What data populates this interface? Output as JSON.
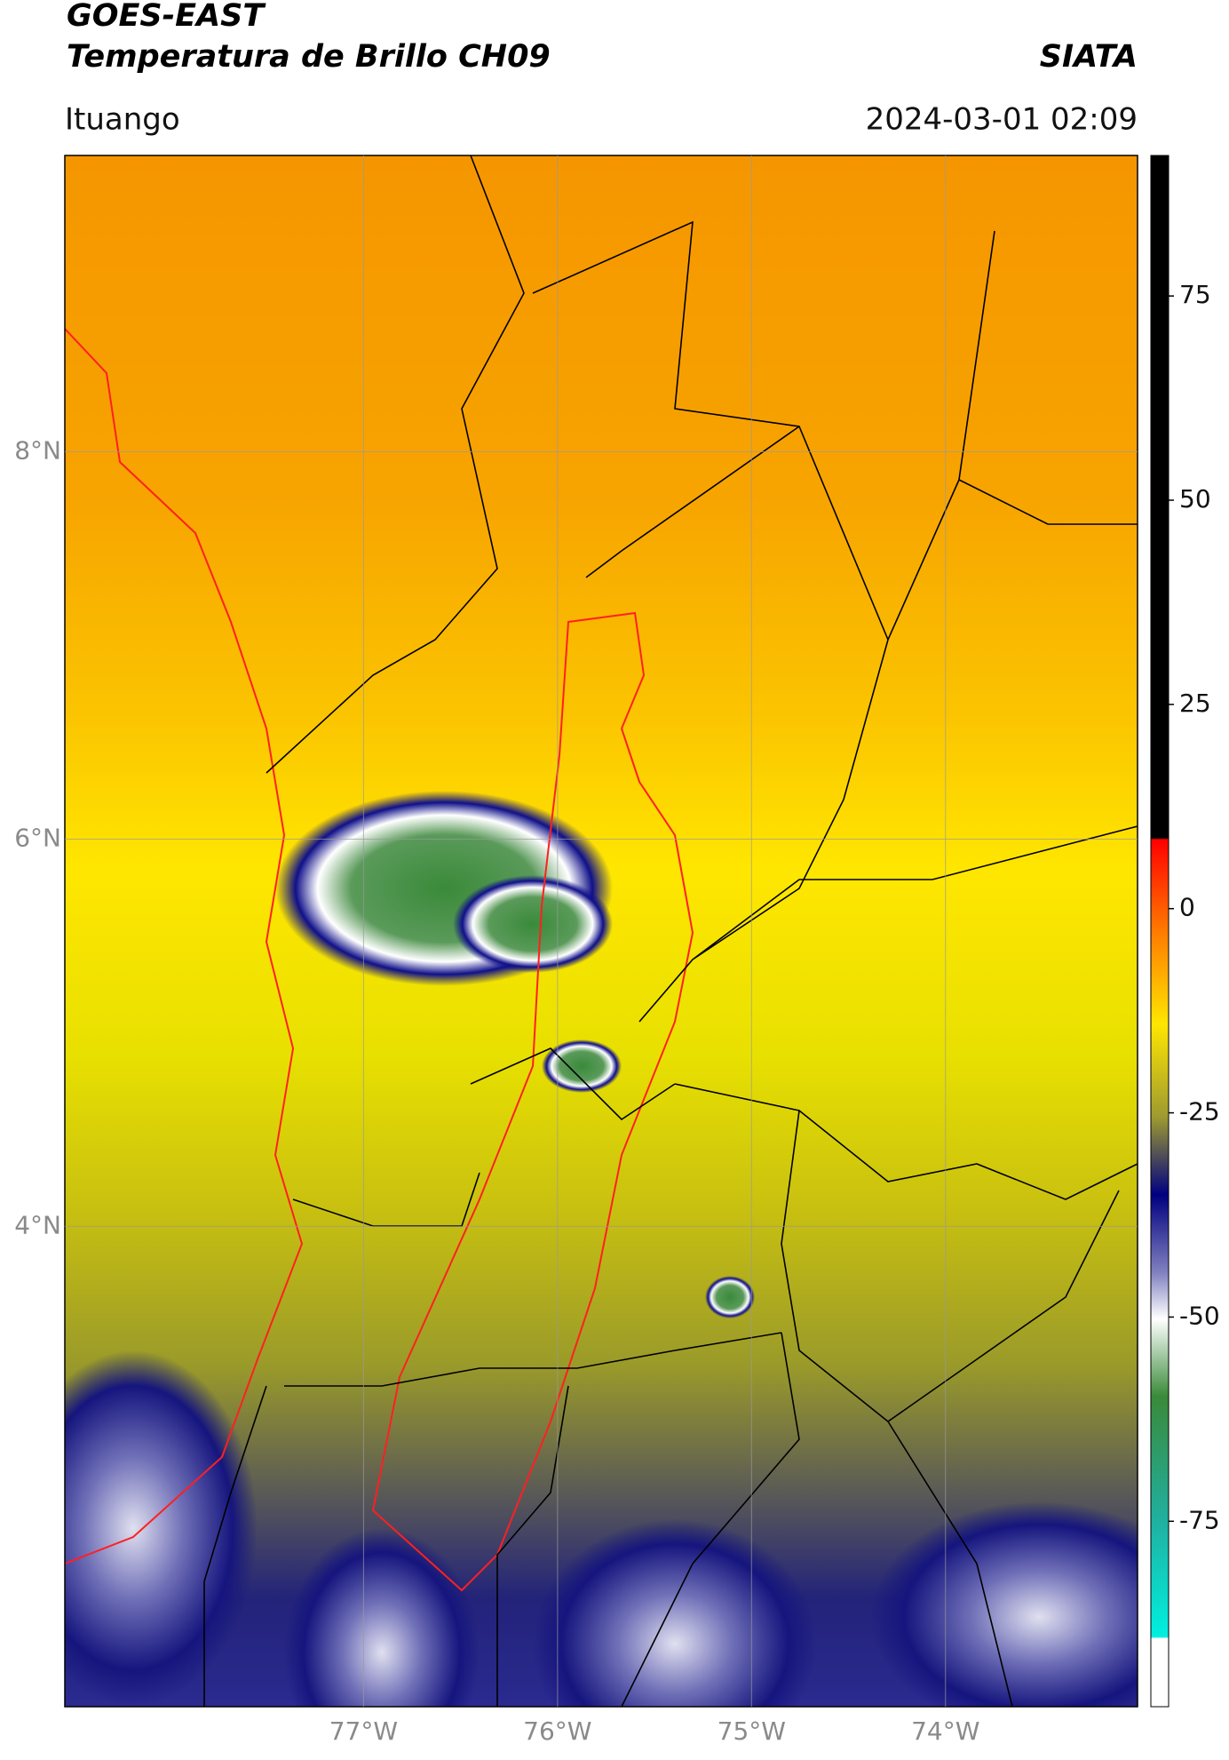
{
  "header": {
    "title": "GOES-EAST",
    "subtitle": "Temperatura de Brillo CH09",
    "source": "SIATA",
    "region": "Ituango",
    "datetime": "2024-03-01 02:09"
  },
  "map": {
    "xlim": [
      -78.54,
      -73.01
    ],
    "ylim": [
      1.52,
      9.53
    ],
    "xticks": [
      {
        "value": -77,
        "label": "77°W"
      },
      {
        "value": -76,
        "label": "76°W"
      },
      {
        "value": -75,
        "label": "75°W"
      },
      {
        "value": -74,
        "label": "74°W"
      }
    ],
    "yticks": [
      {
        "value": 8,
        "label": "8°N"
      },
      {
        "value": 6,
        "label": "6°N"
      },
      {
        "value": 4,
        "label": "4°N"
      }
    ],
    "grid": true
  },
  "colorbar": {
    "lim": [
      -97.7,
      92.2
    ],
    "ticks": [
      75,
      50,
      25,
      0,
      -25,
      -50,
      -75
    ]
  }
}
